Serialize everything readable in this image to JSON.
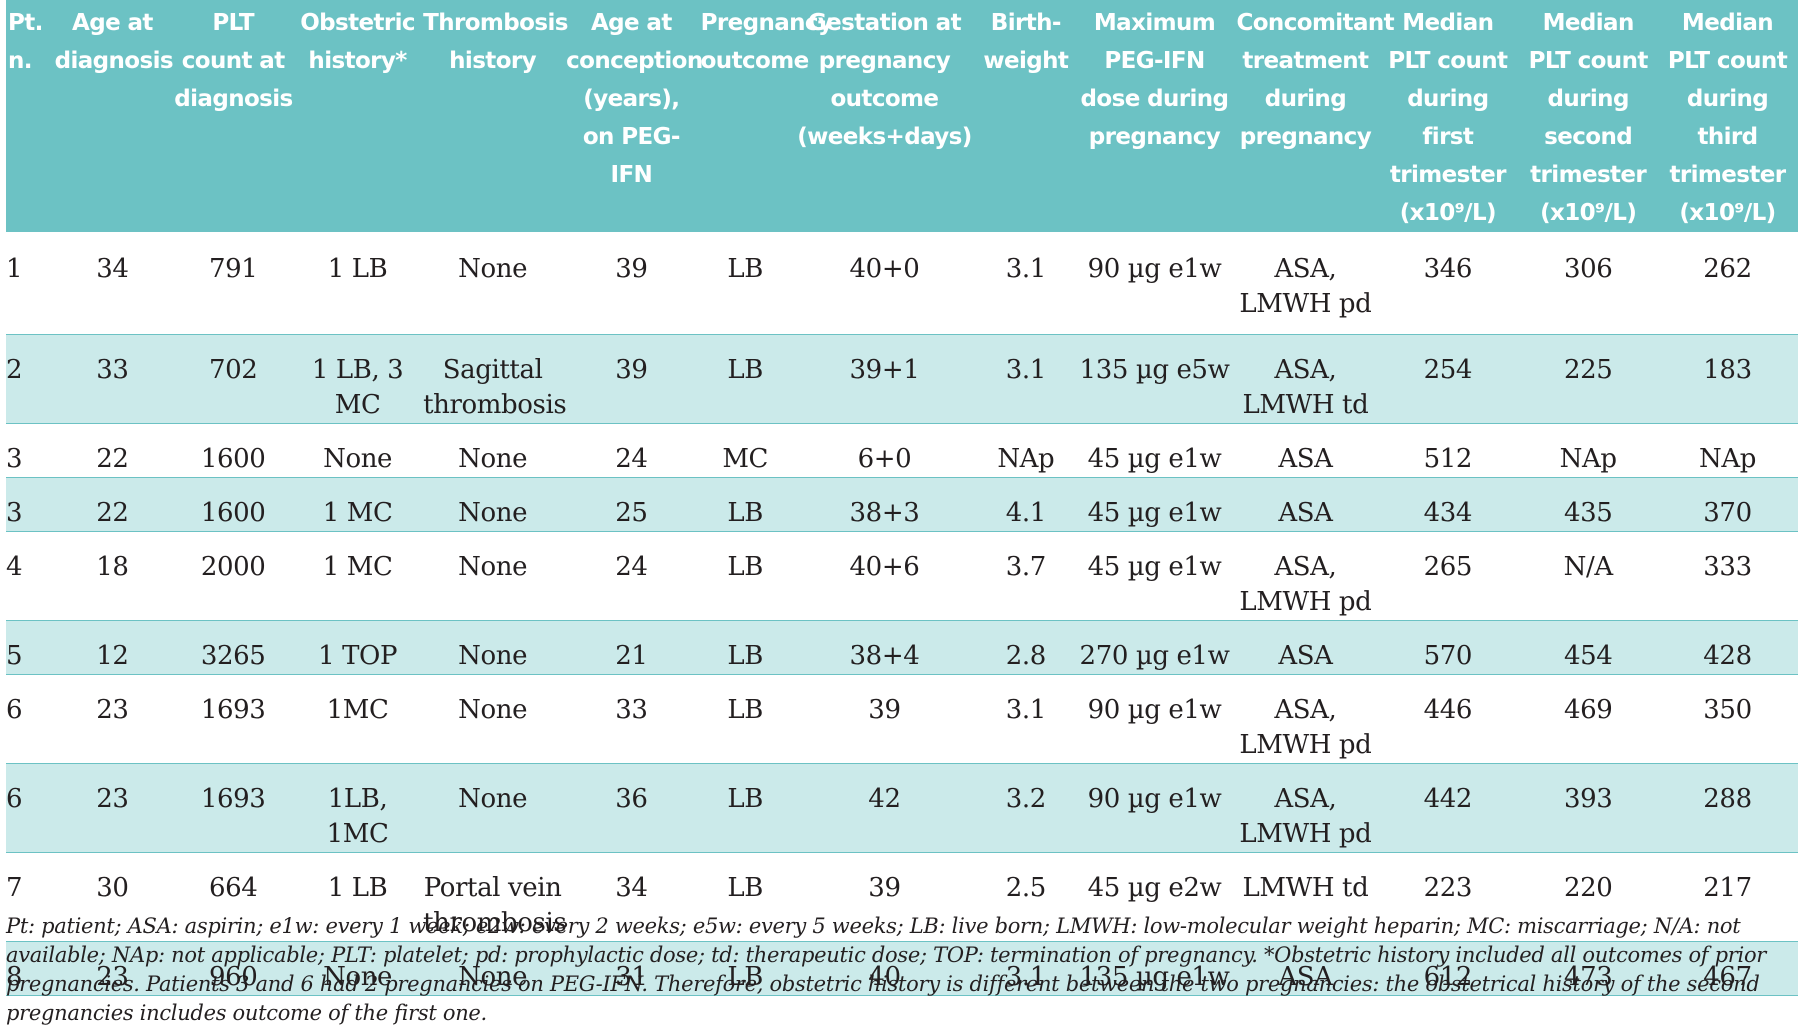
{
  "table": {
    "headers": [
      "Pt. n.",
      "Age at diagnosis",
      "PLT count at diagnosis",
      "Obstetric history*",
      "Thrombosis history",
      "Age at conception (years), on PEG-IFN",
      "Pregnancy outcome",
      "Gestation at pregnancy outcome (weeks+days)",
      "Birth-weight",
      "Maximum PEG-IFN dose during pregnancy",
      "Concomitant treatment during pregnancy",
      "Median PLT count during first trimester (x10⁹/L)",
      "Median PLT count during second trimester (x10⁹/L)",
      "Median PLT count during third trimester (x10⁹/L)"
    ],
    "rows": [
      [
        "1",
        "34",
        "791",
        "1 LB",
        "None",
        "39",
        "LB",
        "40+0",
        "3.1",
        "90 µg e1w",
        "ASA, LMWH pd",
        "346",
        "306",
        "262"
      ],
      [
        "2",
        "33",
        "702",
        "1 LB, 3 MC",
        "Sagittal thrombosis",
        "39",
        "LB",
        "39+1",
        "3.1",
        "135 µg e5w",
        "ASA, LMWH td",
        "254",
        "225",
        "183"
      ],
      [
        "3",
        "22",
        "1600",
        "None",
        "None",
        "24",
        "MC",
        "6+0",
        "NAp",
        "45 µg e1w",
        "ASA",
        "512",
        "NAp",
        "NAp"
      ],
      [
        "3",
        "22",
        "1600",
        "1 MC",
        "None",
        "25",
        "LB",
        "38+3",
        "4.1",
        "45 µg e1w",
        "ASA",
        "434",
        "435",
        "370"
      ],
      [
        "4",
        "18",
        "2000",
        "1 MC",
        "None",
        "24",
        "LB",
        "40+6",
        "3.7",
        "45 µg e1w",
        "ASA, LMWH pd",
        "265",
        "N/A",
        "333"
      ],
      [
        "5",
        "12",
        "3265",
        "1 TOP",
        "None",
        "21",
        "LB",
        "38+4",
        "2.8",
        "270 µg e1w",
        "ASA",
        "570",
        "454",
        "428"
      ],
      [
        "6",
        "23",
        "1693",
        "1MC",
        "None",
        "33",
        "LB",
        "39",
        "3.1",
        "90 µg e1w",
        "ASA, LMWH pd",
        "446",
        "469",
        "350"
      ],
      [
        "6",
        "23",
        "1693",
        "1LB, 1MC",
        "None",
        "36",
        "LB",
        "42",
        "3.2",
        "90 µg e1w",
        "ASA, LMWH pd",
        "442",
        "393",
        "288"
      ],
      [
        "7",
        "30",
        "664",
        "1 LB",
        "Portal vein thrombosis",
        "34",
        "LB",
        "39",
        "2.5",
        "45 µg e2w",
        "LMWH td",
        "223",
        "220",
        "217"
      ],
      [
        "8",
        "23",
        "960",
        "None",
        "None",
        "31",
        "LB",
        "40",
        "3.1",
        "135 µg e1w",
        "ASA",
        "612",
        "473",
        "467"
      ]
    ]
  },
  "footnote": "Pt: patient; ASA: aspirin; e1w: every 1 week; e2w: every 2 weeks; e5w: every 5 weeks; LB: live born; LMWH: low-molecular weight heparin; MC: miscarriage; N/A: not available; NAp: not applicable; PLT: platelet; pd: prophylactic dose; td: therapeutic dose; TOP: termination of pregnancy. *Obstetric history included all outcomes of prior pregnancies. Patients 3 and 6 had 2 pregnancies on PEG-IFN. Therefore, obstetric history is different between the two pregnancies: the obstetrical history of the second pregnancies includes outcome of the first one.",
  "colors": {
    "header_bg": "#6cc2c4",
    "row_alt_bg": "#cbeaea",
    "text": "#231f20"
  }
}
